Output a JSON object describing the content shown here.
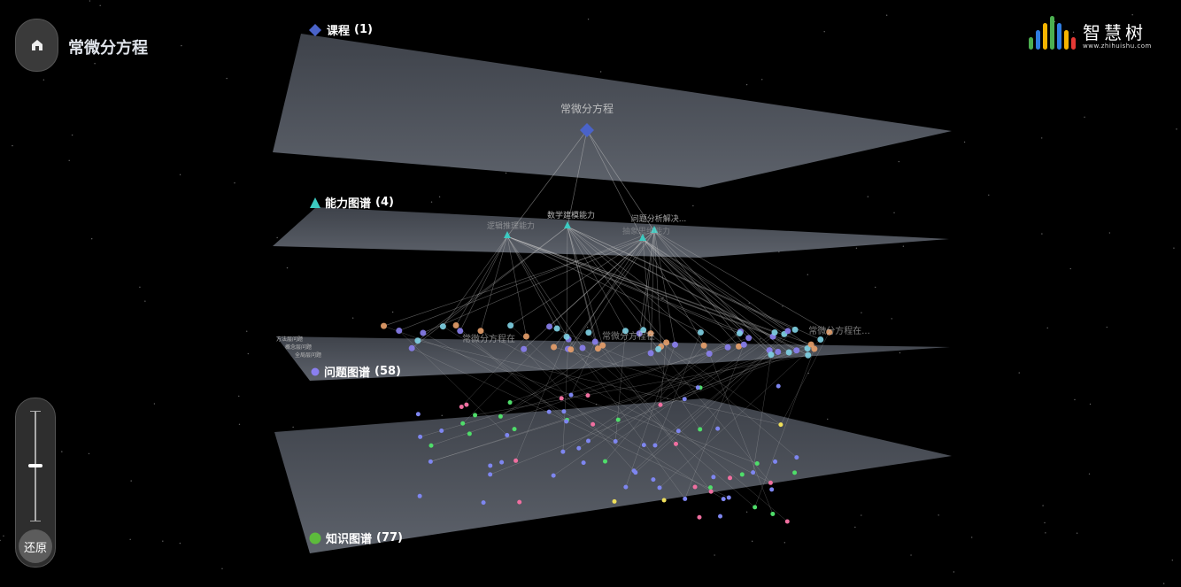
{
  "header": {
    "title": "常微分方程",
    "home_icon": "home-icon"
  },
  "logo": {
    "name": "智慧树",
    "url": "www.zhihuishu.com",
    "bar_colors": [
      "#4caf50",
      "#2f7de1",
      "#f5b400",
      "#4caf50",
      "#2f7de1",
      "#f5b400",
      "#e53935"
    ]
  },
  "zoom": {
    "level": 0.5,
    "reset_label": "还原"
  },
  "layers": [
    {
      "name": "课程",
      "count": "(1)",
      "color": "#4a63c9",
      "shape": "diamond"
    },
    {
      "name": "能力图谱",
      "count": "(4)",
      "color": "#3cc9c0",
      "shape": "triangle"
    },
    {
      "name": "问题图谱",
      "count": "(58)",
      "color": "#8a7ff0",
      "shape": "circle"
    },
    {
      "name": "知识图谱",
      "count": "(77)",
      "color": "#5dbb3c",
      "shape": "circle"
    }
  ],
  "course_node": {
    "label": "常微分方程"
  },
  "ability_nodes": [
    {
      "label": "逻辑推理能力"
    },
    {
      "label": "数学建模能力"
    },
    {
      "label": "问题分析解决..."
    },
    {
      "label": "抽象思维能力"
    }
  ],
  "question_legend": [
    "方法层问题",
    "概念层问题",
    "全局层问题"
  ],
  "question_labels": [
    "常微分方程在...",
    "常微分方程在",
    "常微分方程在"
  ],
  "colors": {
    "plane": "#5a5f68",
    "edge": "#c8c8c8",
    "question_method": "#7fd3e6",
    "question_concept": "#e8a06a",
    "question_global": "#8a7ff0",
    "knowledge_a": "#7e86f0",
    "knowledge_b": "#4fdd6a",
    "knowledge_c": "#f06fa0",
    "knowledge_d": "#f0e05a",
    "knowledge_e": "#f0a860"
  }
}
